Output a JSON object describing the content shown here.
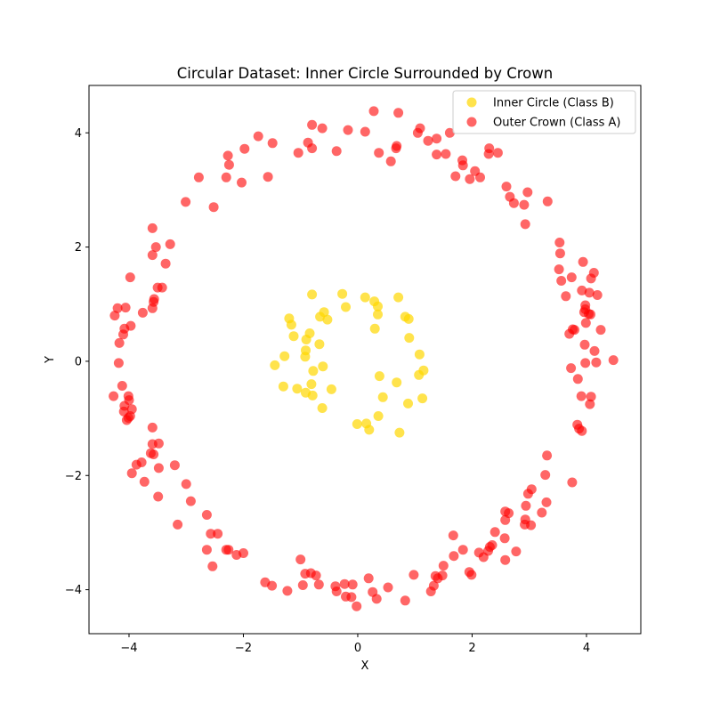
{
  "chart_data": {
    "type": "scatter",
    "title": "Circular Dataset: Inner Circle Surrounded by Crown",
    "xlabel": "X",
    "ylabel": "Y",
    "xlim": [
      -4.7,
      4.95
    ],
    "ylim": [
      -4.77,
      4.83
    ],
    "xticks": [
      -4,
      -2,
      0,
      2,
      4
    ],
    "yticks": [
      -4,
      -2,
      0,
      2,
      4
    ],
    "xtick_labels": [
      "−4",
      "−2",
      "0",
      "2",
      "4"
    ],
    "ytick_labels": [
      "−4",
      "−2",
      "0",
      "2",
      "4"
    ],
    "grid": false,
    "legend_position": "top-right",
    "series": [
      {
        "name": "Inner Circle (Class B)",
        "color": "#FFD700",
        "alpha": 0.7,
        "points": [
          [
            -0.8,
            1.17
          ],
          [
            -0.27,
            1.18
          ],
          [
            0.13,
            1.12
          ],
          [
            0.29,
            1.05
          ],
          [
            0.71,
            1.12
          ],
          [
            -1.2,
            0.75
          ],
          [
            -1.16,
            0.64
          ],
          [
            -0.21,
            0.95
          ],
          [
            0.35,
            0.96
          ],
          [
            0.35,
            0.82
          ],
          [
            -0.59,
            0.86
          ],
          [
            -0.66,
            0.78
          ],
          [
            -0.53,
            0.73
          ],
          [
            0.83,
            0.78
          ],
          [
            0.89,
            0.74
          ],
          [
            -0.84,
            0.49
          ],
          [
            -0.9,
            0.38
          ],
          [
            -1.12,
            0.44
          ],
          [
            -0.67,
            0.3
          ],
          [
            0.3,
            0.57
          ],
          [
            0.9,
            0.41
          ],
          [
            -0.91,
            0.19
          ],
          [
            -0.92,
            0.08
          ],
          [
            -1.28,
            0.09
          ],
          [
            1.08,
            0.12
          ],
          [
            -1.45,
            -0.07
          ],
          [
            -0.61,
            -0.09
          ],
          [
            -0.78,
            -0.17
          ],
          [
            1.15,
            -0.16
          ],
          [
            1.07,
            -0.24
          ],
          [
            0.38,
            -0.26
          ],
          [
            -1.3,
            -0.44
          ],
          [
            -1.06,
            -0.48
          ],
          [
            -0.81,
            -0.4
          ],
          [
            -0.91,
            -0.55
          ],
          [
            -0.79,
            -0.6
          ],
          [
            -0.46,
            -0.49
          ],
          [
            0.68,
            -0.37
          ],
          [
            0.44,
            -0.63
          ],
          [
            1.13,
            -0.65
          ],
          [
            -0.62,
            -0.82
          ],
          [
            0.88,
            -0.74
          ],
          [
            0.36,
            -0.96
          ],
          [
            -0.01,
            -1.1
          ],
          [
            0.15,
            -1.09
          ],
          [
            0.2,
            -1.2
          ],
          [
            0.73,
            -1.25
          ]
        ]
      },
      {
        "name": "Outer Crown (Class A)",
        "color": "#FF0000",
        "alpha": 0.6,
        "points": [
          [
            0.28,
            4.38
          ],
          [
            0.71,
            4.35
          ],
          [
            -0.8,
            4.14
          ],
          [
            -0.62,
            4.08
          ],
          [
            -0.17,
            4.05
          ],
          [
            0.13,
            4.02
          ],
          [
            1.09,
            4.08
          ],
          [
            1.05,
            4.0
          ],
          [
            1.61,
            4.0
          ],
          [
            -1.74,
            3.94
          ],
          [
            -1.49,
            3.82
          ],
          [
            -0.87,
            3.83
          ],
          [
            -0.8,
            3.73
          ],
          [
            -1.04,
            3.65
          ],
          [
            -0.37,
            3.68
          ],
          [
            0.68,
            3.77
          ],
          [
            0.67,
            3.73
          ],
          [
            1.23,
            3.86
          ],
          [
            1.38,
            3.9
          ],
          [
            0.37,
            3.65
          ],
          [
            1.54,
            3.63
          ],
          [
            1.38,
            3.62
          ],
          [
            2.3,
            3.73
          ],
          [
            2.29,
            3.63
          ],
          [
            2.45,
            3.65
          ],
          [
            -2.27,
            3.6
          ],
          [
            -2.25,
            3.44
          ],
          [
            -1.98,
            3.72
          ],
          [
            0.58,
            3.5
          ],
          [
            1.83,
            3.52
          ],
          [
            1.84,
            3.43
          ],
          [
            2.05,
            3.33
          ],
          [
            2.14,
            3.22
          ],
          [
            1.96,
            3.19
          ],
          [
            1.71,
            3.24
          ],
          [
            -2.78,
            3.22
          ],
          [
            -2.3,
            3.22
          ],
          [
            -1.57,
            3.23
          ],
          [
            -2.03,
            3.13
          ],
          [
            2.6,
            3.06
          ],
          [
            2.97,
            2.96
          ],
          [
            2.66,
            2.88
          ],
          [
            2.73,
            2.77
          ],
          [
            2.91,
            2.74
          ],
          [
            3.32,
            2.8
          ],
          [
            -3.01,
            2.79
          ],
          [
            -2.52,
            2.7
          ],
          [
            2.93,
            2.4
          ],
          [
            -3.59,
            2.33
          ],
          [
            -3.28,
            2.05
          ],
          [
            -3.53,
            2.0
          ],
          [
            3.53,
            2.08
          ],
          [
            3.54,
            1.89
          ],
          [
            -3.59,
            1.86
          ],
          [
            -3.36,
            1.71
          ],
          [
            3.52,
            1.61
          ],
          [
            3.94,
            1.74
          ],
          [
            -3.98,
            1.47
          ],
          [
            3.56,
            1.41
          ],
          [
            3.74,
            1.47
          ],
          [
            4.13,
            1.55
          ],
          [
            4.08,
            1.45
          ],
          [
            -3.5,
            1.29
          ],
          [
            -3.42,
            1.29
          ],
          [
            3.92,
            1.24
          ],
          [
            4.05,
            1.2
          ],
          [
            4.19,
            1.16
          ],
          [
            -3.56,
            1.09
          ],
          [
            -3.57,
            1.04
          ],
          [
            3.64,
            1.14
          ],
          [
            -4.2,
            0.93
          ],
          [
            -4.06,
            0.94
          ],
          [
            -3.59,
            0.93
          ],
          [
            3.98,
            0.98
          ],
          [
            3.98,
            0.91
          ],
          [
            -3.76,
            0.85
          ],
          [
            4.04,
            0.83
          ],
          [
            4.07,
            0.82
          ],
          [
            3.96,
            0.86
          ],
          [
            -4.25,
            0.8
          ],
          [
            -3.97,
            0.62
          ],
          [
            3.99,
            0.67
          ],
          [
            -4.08,
            0.57
          ],
          [
            -4.1,
            0.47
          ],
          [
            3.76,
            0.56
          ],
          [
            3.79,
            0.55
          ],
          [
            4.25,
            0.55
          ],
          [
            3.7,
            0.48
          ],
          [
            -4.17,
            0.32
          ],
          [
            3.97,
            0.29
          ],
          [
            4.14,
            0.18
          ],
          [
            -4.18,
            -0.03
          ],
          [
            3.98,
            -0.03
          ],
          [
            4.47,
            0.02
          ],
          [
            4.17,
            -0.02
          ],
          [
            3.73,
            -0.12
          ],
          [
            3.85,
            -0.31
          ],
          [
            -4.12,
            -0.43
          ],
          [
            4.08,
            -0.62
          ],
          [
            3.91,
            -0.61
          ],
          [
            -4.27,
            -0.61
          ],
          [
            -4.01,
            -0.61
          ],
          [
            -4.0,
            -0.68
          ],
          [
            -4.08,
            -0.78
          ],
          [
            4.06,
            -0.75
          ],
          [
            -3.95,
            -0.84
          ],
          [
            -4.09,
            -0.88
          ],
          [
            -3.98,
            -0.96
          ],
          [
            -4.01,
            -0.99
          ],
          [
            -4.04,
            -1.03
          ],
          [
            3.84,
            -1.11
          ],
          [
            3.87,
            -1.18
          ],
          [
            3.92,
            -1.22
          ],
          [
            -3.59,
            -1.16
          ],
          [
            -3.48,
            -1.44
          ],
          [
            -3.59,
            -1.45
          ],
          [
            -3.62,
            -1.61
          ],
          [
            -3.57,
            -1.63
          ],
          [
            3.31,
            -1.65
          ],
          [
            -3.78,
            -1.77
          ],
          [
            -3.87,
            -1.81
          ],
          [
            -3.48,
            -1.87
          ],
          [
            -3.2,
            -1.82
          ],
          [
            -3.95,
            -1.96
          ],
          [
            3.28,
            -1.99
          ],
          [
            -3.73,
            -2.11
          ],
          [
            -3.0,
            -2.15
          ],
          [
            3.75,
            -2.12
          ],
          [
            3.04,
            -2.24
          ],
          [
            2.98,
            -2.32
          ],
          [
            -3.49,
            -2.37
          ],
          [
            -2.92,
            -2.45
          ],
          [
            3.3,
            -2.47
          ],
          [
            2.94,
            -2.53
          ],
          [
            2.58,
            -2.63
          ],
          [
            2.64,
            -2.66
          ],
          [
            3.22,
            -2.65
          ],
          [
            -2.64,
            -2.69
          ],
          [
            2.58,
            -2.78
          ],
          [
            2.93,
            -2.77
          ],
          [
            2.92,
            -2.86
          ],
          [
            3.03,
            -2.87
          ],
          [
            -3.15,
            -2.86
          ],
          [
            2.4,
            -2.99
          ],
          [
            -2.57,
            -3.02
          ],
          [
            -2.45,
            -3.02
          ],
          [
            1.67,
            -3.05
          ],
          [
            2.57,
            -3.1
          ],
          [
            -2.64,
            -3.3
          ],
          [
            -2.3,
            -3.3
          ],
          [
            -2.26,
            -3.3
          ],
          [
            -2.12,
            -3.39
          ],
          [
            -2.0,
            -3.36
          ],
          [
            1.84,
            -3.3
          ],
          [
            2.35,
            -3.22
          ],
          [
            2.31,
            -3.25
          ],
          [
            2.28,
            -3.32
          ],
          [
            2.12,
            -3.35
          ],
          [
            2.77,
            -3.33
          ],
          [
            1.68,
            -3.41
          ],
          [
            2.2,
            -3.43
          ],
          [
            2.58,
            -3.48
          ],
          [
            -1.0,
            -3.47
          ],
          [
            -2.54,
            -3.59
          ],
          [
            1.5,
            -3.58
          ],
          [
            1.95,
            -3.69
          ],
          [
            1.99,
            -3.74
          ],
          [
            1.48,
            -3.75
          ],
          [
            -0.92,
            -3.72
          ],
          [
            -0.82,
            -3.71
          ],
          [
            -0.73,
            -3.75
          ],
          [
            -1.62,
            -3.87
          ],
          [
            -1.5,
            -3.93
          ],
          [
            -0.96,
            -3.92
          ],
          [
            -0.68,
            -3.91
          ],
          [
            0.98,
            -3.74
          ],
          [
            1.36,
            -3.76
          ],
          [
            1.4,
            -3.8
          ],
          [
            0.19,
            -3.8
          ],
          [
            -0.39,
            -3.94
          ],
          [
            -0.23,
            -3.9
          ],
          [
            -0.09,
            -3.91
          ],
          [
            1.33,
            -3.93
          ],
          [
            -1.23,
            -4.02
          ],
          [
            -0.37,
            -4.03
          ],
          [
            0.53,
            -3.96
          ],
          [
            0.26,
            -4.04
          ],
          [
            1.28,
            -4.03
          ],
          [
            -0.21,
            -4.12
          ],
          [
            -0.11,
            -4.13
          ],
          [
            0.33,
            -4.16
          ],
          [
            0.83,
            -4.19
          ],
          [
            -0.02,
            -4.29
          ]
        ]
      }
    ]
  }
}
